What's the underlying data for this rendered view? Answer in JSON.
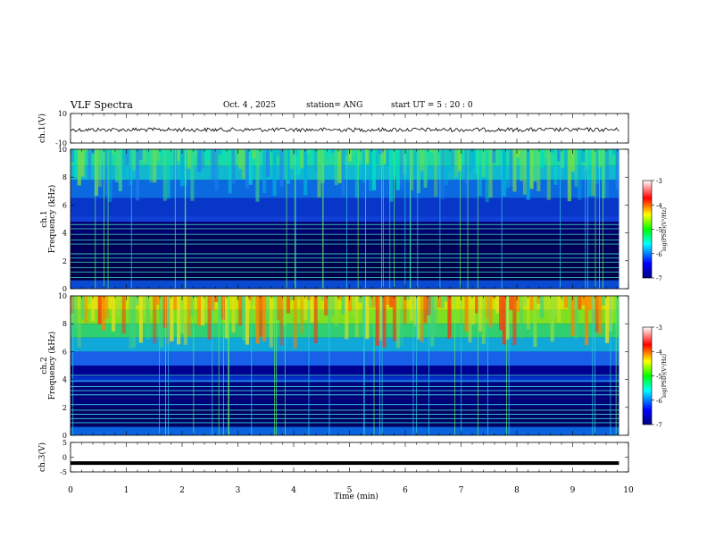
{
  "header": {
    "title": "VLF Spectra",
    "date": "Oct. 4 , 2025",
    "station": "station= ANG",
    "start": "start UT =  5 : 20 : 0"
  },
  "chart_data": [
    {
      "type": "line",
      "ylabel": "ch.1(V)",
      "ylim": [
        -10,
        10
      ],
      "yticks": [
        "10",
        "-10"
      ],
      "level": -1,
      "xlim": [
        0,
        10
      ]
    },
    {
      "type": "heatmap",
      "ylabel_channel": "ch.1",
      "ylabel": "Frequency (kHz)",
      "ylim": [
        0,
        10
      ],
      "yticks": [
        "0",
        "2",
        "4",
        "6",
        "8",
        "10"
      ],
      "colorbar": {
        "label": "log(PSD)(V²/Hz)",
        "ticks": [
          "-3",
          "-4",
          "-5",
          "-6",
          "-7"
        ],
        "range": [
          -7,
          -3
        ]
      },
      "intensity": "low"
    },
    {
      "type": "heatmap",
      "ylabel_channel": "ch.2",
      "ylabel": "Frequency (kHz)",
      "ylim": [
        0,
        10
      ],
      "yticks": [
        "0",
        "2",
        "4",
        "6",
        "8",
        "10"
      ],
      "colorbar": {
        "label": "log(PSD)(V²/Hz)",
        "ticks": [
          "-3",
          "-4",
          "-5",
          "-6",
          "-7"
        ],
        "range": [
          -7,
          -3
        ]
      },
      "intensity": "high"
    },
    {
      "type": "line",
      "ylabel": "ch.3(V)",
      "ylim": [
        -5,
        5
      ],
      "yticks": [
        "5",
        "0",
        "-5"
      ],
      "level": -2,
      "xlim": [
        0,
        10
      ]
    }
  ],
  "xaxis": {
    "label": "Time (min)",
    "ticks": [
      "0",
      "1",
      "2",
      "3",
      "4",
      "5",
      "6",
      "7",
      "8",
      "9",
      "10"
    ],
    "xlim": [
      0,
      10
    ],
    "data_end": 9.83
  }
}
